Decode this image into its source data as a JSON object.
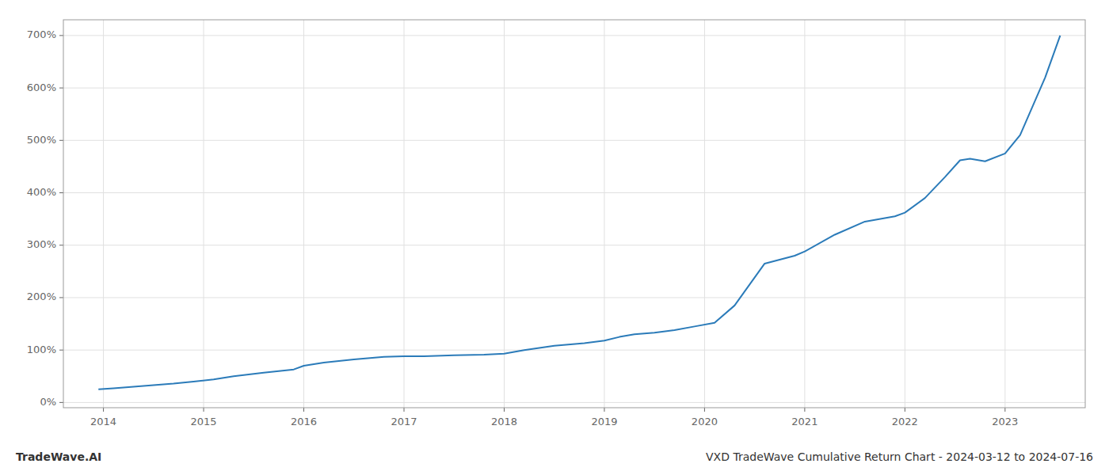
{
  "chart_data": {
    "type": "line",
    "title": "VXD TradeWave Cumulative Return Chart - 2024-03-12 to 2024-07-16",
    "annotations": [
      "TradeWave.AI"
    ],
    "color": "#2b7bb9",
    "grid": true,
    "xlim": [
      2013.6,
      2023.8
    ],
    "xticks": [
      2014,
      2015,
      2016,
      2017,
      2018,
      2019,
      2020,
      2021,
      2022,
      2023
    ],
    "ylim": [
      -10,
      730
    ],
    "yticks": [
      {
        "value": 0,
        "label": "0%"
      },
      {
        "value": 100,
        "label": "100%"
      },
      {
        "value": 200,
        "label": "200%"
      },
      {
        "value": 300,
        "label": "300%"
      },
      {
        "value": 400,
        "label": "400%"
      },
      {
        "value": 500,
        "label": "500%"
      },
      {
        "value": 600,
        "label": "600%"
      },
      {
        "value": 700,
        "label": "700%"
      }
    ],
    "x": [
      2013.95,
      2014.1,
      2014.3,
      2014.5,
      2014.7,
      2014.9,
      2015.1,
      2015.3,
      2015.6,
      2015.9,
      2016.0,
      2016.2,
      2016.5,
      2016.8,
      2017.0,
      2017.2,
      2017.5,
      2017.8,
      2018.0,
      2018.2,
      2018.5,
      2018.8,
      2019.0,
      2019.15,
      2019.3,
      2019.5,
      2019.7,
      2019.9,
      2020.1,
      2020.3,
      2020.6,
      2020.9,
      2021.0,
      2021.3,
      2021.6,
      2021.9,
      2022.0,
      2022.2,
      2022.4,
      2022.55,
      2022.65,
      2022.8,
      2023.0,
      2023.15,
      2023.4,
      2023.55
    ],
    "values": [
      25,
      27,
      30,
      33,
      36,
      40,
      44,
      50,
      57,
      63,
      70,
      76,
      82,
      87,
      88,
      88,
      90,
      91,
      93,
      100,
      108,
      113,
      118,
      125,
      130,
      133,
      138,
      145,
      152,
      185,
      265,
      280,
      288,
      320,
      345,
      355,
      362,
      390,
      430,
      462,
      465,
      460,
      475,
      510,
      620,
      700
    ]
  }
}
